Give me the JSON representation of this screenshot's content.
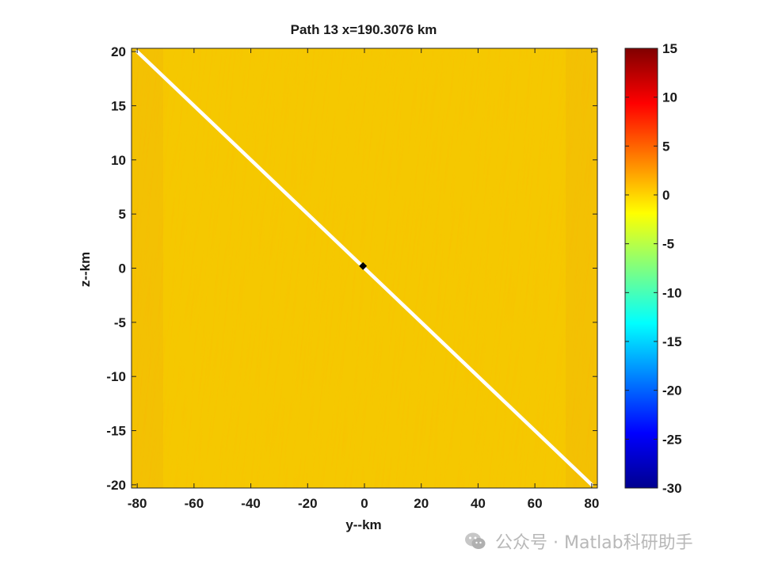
{
  "chart_data": {
    "type": "heatmap",
    "title": "Path 13 x=190.3076 km",
    "xlabel": "y--km",
    "ylabel": "z--km",
    "xlim": [
      -82,
      82
    ],
    "ylim": [
      -20.3,
      20.3
    ],
    "x_ticks": [
      -80,
      -60,
      -40,
      -20,
      0,
      20,
      40,
      60,
      80
    ],
    "y_ticks": [
      -20,
      -15,
      -10,
      -5,
      0,
      5,
      10,
      15,
      20
    ],
    "colorbar": {
      "colormap": "jet",
      "clim": [
        -30,
        15
      ],
      "ticks": [
        15,
        10,
        5,
        0,
        -5,
        -10,
        -15,
        -20,
        -25,
        -30
      ]
    },
    "field_value_approx": 0,
    "path_line": {
      "x": [
        -80,
        80
      ],
      "z": [
        20,
        -20
      ],
      "color": "#ffffff"
    },
    "marker": {
      "x": -0.5,
      "z": 0.2,
      "color": "#000000"
    },
    "grid": false
  },
  "watermark": {
    "text": "公众号 · Matlab科研助手"
  }
}
